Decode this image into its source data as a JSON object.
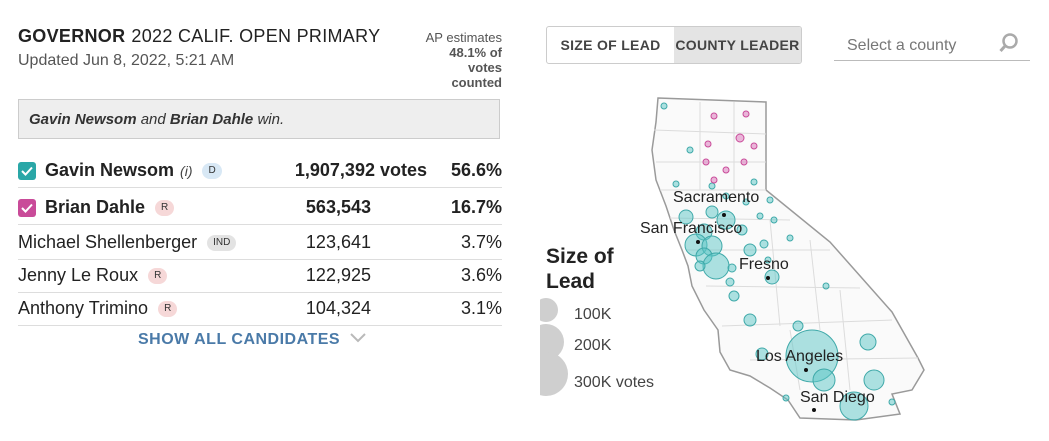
{
  "header": {
    "office": "GOVERNOR",
    "race": "2022 CALIF. OPEN PRIMARY",
    "updated": "Updated Jun 8, 2022, 5:21 AM",
    "ap_label": "AP estimates",
    "ap_pct": "48.1% of",
    "ap_votes": "votes",
    "ap_counted": "counted"
  },
  "winner_banner": {
    "name1": "Gavin Newsom",
    "and": "and",
    "name2": "Brian Dahle",
    "win": "win."
  },
  "candidates": [
    {
      "name": "Gavin Newsom",
      "incumbent": "(i)",
      "party": "D",
      "votes": "1,907,392 votes",
      "pct": "56.6%",
      "winner": true,
      "color": "#2aa7a7"
    },
    {
      "name": "Brian Dahle",
      "incumbent": "",
      "party": "R",
      "votes": "563,543",
      "pct": "16.7%",
      "winner": true,
      "color": "#c94b99"
    },
    {
      "name": "Michael Shellenberger",
      "incumbent": "",
      "party": "IND",
      "votes": "123,641",
      "pct": "3.7%",
      "winner": false
    },
    {
      "name": "Jenny Le Roux",
      "incumbent": "",
      "party": "R",
      "votes": "122,925",
      "pct": "3.6%",
      "winner": false
    },
    {
      "name": "Anthony Trimino",
      "incumbent": "",
      "party": "R",
      "votes": "104,324",
      "pct": "3.1%",
      "winner": false
    }
  ],
  "show_all": "SHOW ALL CANDIDATES",
  "toggle": {
    "size_of_lead": "SIZE OF LEAD",
    "county_leader": "COUNTY LEADER"
  },
  "search": {
    "placeholder": "Select a county"
  },
  "legend": {
    "title1": "Size of",
    "title2": "Lead",
    "v1": "100K",
    "v2": "200K",
    "v3": "300K votes"
  },
  "map": {
    "cities": [
      "Sacramento",
      "San Francisco",
      "Fresno",
      "Los Angeles",
      "San Diego"
    ],
    "colors": {
      "newsom": "#5cc5c5",
      "dahle": "#d96fb8"
    }
  }
}
